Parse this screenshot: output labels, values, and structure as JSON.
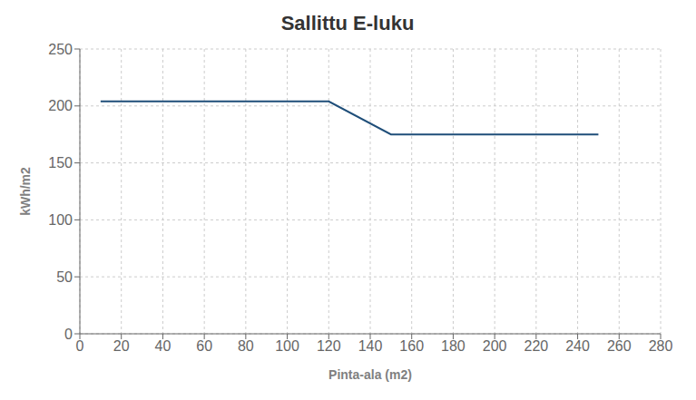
{
  "chart_data": {
    "type": "line",
    "title": "Sallittu E-luku",
    "xlabel": "Pinta-ala (m2)",
    "ylabel": "kWh/m2",
    "x": [
      10,
      120,
      150,
      250
    ],
    "values": [
      204,
      204,
      175,
      175
    ],
    "color": "#1F4E79",
    "xlim": [
      0,
      280
    ],
    "ylim": [
      0,
      250
    ],
    "xticks": [
      0,
      20,
      40,
      60,
      80,
      100,
      120,
      140,
      160,
      180,
      200,
      220,
      240,
      260,
      280
    ],
    "yticks": [
      0,
      50,
      100,
      150,
      200,
      250
    ],
    "grid": true
  }
}
